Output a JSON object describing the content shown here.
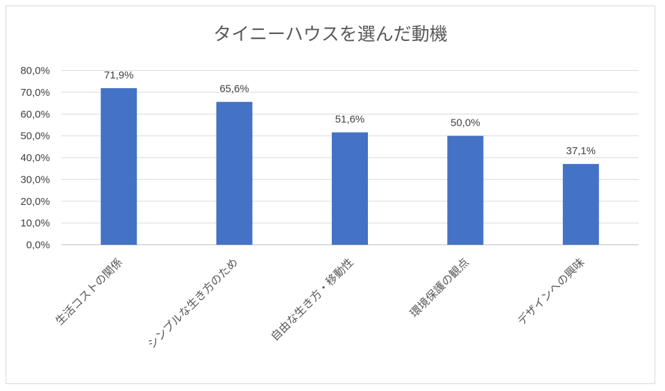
{
  "chart_data": {
    "type": "bar",
    "title": "タイニーハウスを選んだ動機",
    "categories": [
      "生活コストの関係",
      "シンプルな生き方のため",
      "自由な生き方・移動性",
      "環境保護の観点",
      "デザインへの興味"
    ],
    "values": [
      71.9,
      65.6,
      51.6,
      50.0,
      37.1
    ],
    "value_labels": [
      "71,9%",
      "65,6%",
      "51,6%",
      "50,0%",
      "37,1%"
    ],
    "y_ticks": [
      "0,0%",
      "10,0%",
      "20,0%",
      "30,0%",
      "40,0%",
      "50,0%",
      "60,0%",
      "70,0%",
      "80,0%"
    ],
    "ylim": [
      0,
      80
    ],
    "grid": true,
    "bar_color": "#4472c4"
  }
}
